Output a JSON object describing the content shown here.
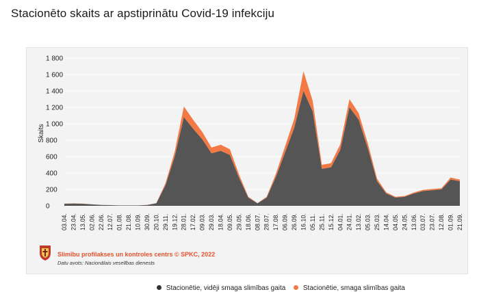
{
  "title": "Stacionēto skaits ar apstiprinātu Covid-19 infekciju",
  "chart_data": {
    "type": "area",
    "stacked": true,
    "ylabel": "Skaits",
    "ylim": [
      0,
      1800
    ],
    "yticks": [
      0,
      200,
      400,
      600,
      800,
      1000,
      1200,
      1400,
      1600,
      1800
    ],
    "ytick_labels": [
      "0",
      "200",
      "400",
      "600",
      "800",
      "1 000",
      "1 200",
      "1 400",
      "1 600",
      "1 800"
    ],
    "xtick_labels": [
      "03.04.",
      "23.04.",
      "13.05.",
      "02.06.",
      "22.06.",
      "12.07.",
      "01.08.",
      "21.08.",
      "10.09.",
      "30.09.",
      "20.10.",
      "29.11.",
      "19.12.",
      "28.01.",
      "17.02.",
      "09.03.",
      "29.03.",
      "18.04.",
      "09.05.",
      "29.05.",
      "18.06.",
      "08.07.",
      "28.07.",
      "17.08.",
      "06.09.",
      "26.09.",
      "16.10.",
      "05.11.",
      "25.11.",
      "15.12.",
      "04.01.",
      "24.01.",
      "13.02.",
      "05.03.",
      "25.03.",
      "14.04.",
      "04.05.",
      "24.05.",
      "13.06.",
      "03.07.",
      "23.07.",
      "12.08.",
      "01.09.",
      "21.09."
    ],
    "grid": true,
    "legend_position": "bottom",
    "series": [
      {
        "name": "Stacionētie, vidēji smaga slimības gaita",
        "color": "#555555",
        "values": [
          25,
          28,
          25,
          18,
          10,
          8,
          5,
          5,
          5,
          10,
          30,
          250,
          600,
          1080,
          940,
          810,
          640,
          670,
          620,
          340,
          100,
          30,
          100,
          350,
          650,
          950,
          1400,
          1150,
          450,
          470,
          680,
          1200,
          1050,
          700,
          300,
          150,
          100,
          110,
          150,
          180,
          190,
          200,
          320,
          300
        ]
      },
      {
        "name": "Stacionētie, smaga slimības gaita",
        "color": "#f47a45",
        "values": [
          2,
          2,
          2,
          1,
          1,
          1,
          0,
          0,
          0,
          1,
          3,
          25,
          60,
          130,
          110,
          90,
          70,
          75,
          70,
          40,
          10,
          3,
          10,
          40,
          75,
          110,
          240,
          130,
          50,
          50,
          70,
          100,
          80,
          60,
          30,
          15,
          10,
          10,
          12,
          15,
          15,
          15,
          25,
          20
        ]
      }
    ]
  },
  "legend": {
    "items": [
      {
        "label": "Stacionētie, vidēji smaga slimības gaita",
        "color": "#333333"
      },
      {
        "label": "Stacionētie, smaga slimības gaita",
        "color": "#f47a45"
      }
    ]
  },
  "footer": {
    "credit": "Slimību profilakses un kontroles centrs © SPKC, 2022",
    "source": "Datu avots: Nacionālais veselības dienests"
  }
}
